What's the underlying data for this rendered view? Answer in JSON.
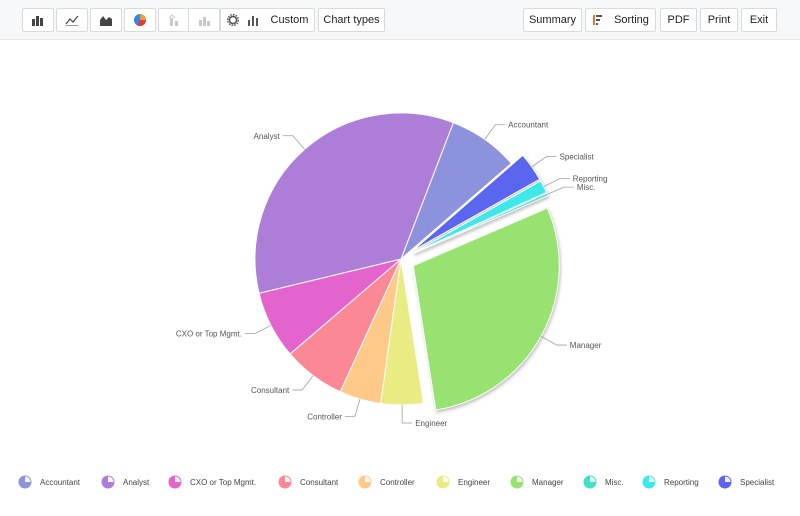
{
  "toolbar": {
    "custom_label": "Custom",
    "chart_types_label": "Chart types",
    "summary_label": "Summary",
    "sorting_label": "Sorting",
    "pdf_label": "PDF",
    "print_label": "Print",
    "exit_label": "Exit",
    "icons": [
      "bar-chart-icon",
      "line-chart-icon",
      "area-chart-icon",
      "pie-chart-icon",
      "stacked-bar-icon",
      "bar-disabled-icon",
      "gear-icon",
      "bar-settings-icon",
      "sorting-icon"
    ]
  },
  "chart_data": {
    "type": "pie",
    "slices": [
      {
        "label": "Accountant",
        "value": 7.8,
        "color": "#8c93dc",
        "exploded": false
      },
      {
        "label": "Specialist",
        "value": 3.2,
        "color": "#5a66ee",
        "exploded": true
      },
      {
        "label": "Reporting",
        "value": 1.4,
        "color": "#3de8ea",
        "exploded": true
      },
      {
        "label": "Misc.",
        "value": 0.3,
        "color": "#3ee0c8",
        "exploded": true
      },
      {
        "label": "Manager",
        "value": 29.0,
        "color": "#98e272",
        "exploded": true
      },
      {
        "label": "Engineer",
        "value": 4.7,
        "color": "#e8ec82",
        "exploded": false
      },
      {
        "label": "Controller",
        "value": 4.6,
        "color": "#ffc98a",
        "exploded": false
      },
      {
        "label": "Consultant",
        "value": 6.9,
        "color": "#fb8894",
        "exploded": false
      },
      {
        "label": "CXO or Top Mgmt.",
        "value": 7.5,
        "color": "#e264cc",
        "exploded": false
      },
      {
        "label": "Analyst",
        "value": 34.6,
        "color": "#ad7ed8",
        "exploded": false
      }
    ],
    "start_angle_deg": 69,
    "legend": {
      "position": "bottom",
      "items": [
        "Accountant",
        "Analyst",
        "CXO or Top Mgmt.",
        "Consultant",
        "Controller",
        "Engineer",
        "Manager",
        "Misc.",
        "Reporting",
        "Specialist"
      ],
      "colors": [
        "#8c93dc",
        "#ad7ed8",
        "#e264cc",
        "#fb8894",
        "#ffc98a",
        "#e8ec82",
        "#98e272",
        "#3ee0c8",
        "#3de8ea",
        "#5a66ee"
      ]
    }
  }
}
